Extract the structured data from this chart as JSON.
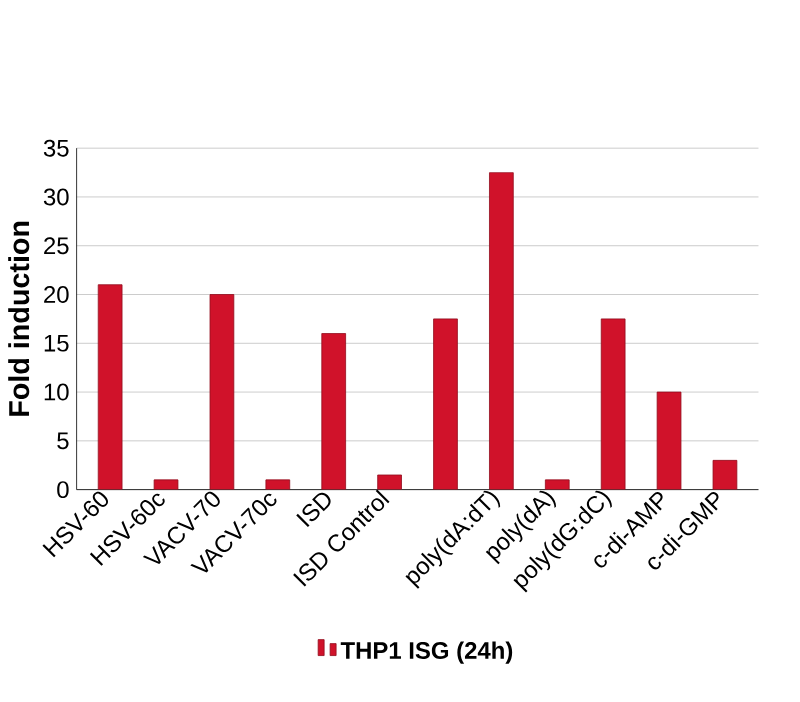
{
  "chart_data": {
    "type": "bar",
    "ylabel": "Fold induction",
    "categories": [
      "HSV-60",
      "HSV-60c",
      "VACV-70",
      "VACV-70c",
      "ISD",
      "ISD Control",
      null,
      "poly(dA:dT)",
      "poly(dA)",
      "poly(dG:dC)",
      "c-di-AMP",
      "c-di-GMP"
    ],
    "series": [
      {
        "name": "THP1 ISG (24h)",
        "color": "#d0122a",
        "values": [
          21,
          1,
          20,
          1,
          16,
          1.5,
          17.5,
          32.5,
          1,
          17.5,
          10,
          3
        ]
      }
    ],
    "ylim": [
      0,
      35
    ],
    "yticks": [
      0,
      5,
      10,
      15,
      20,
      25,
      30,
      35
    ],
    "grid": "y",
    "legend": "bottom"
  }
}
